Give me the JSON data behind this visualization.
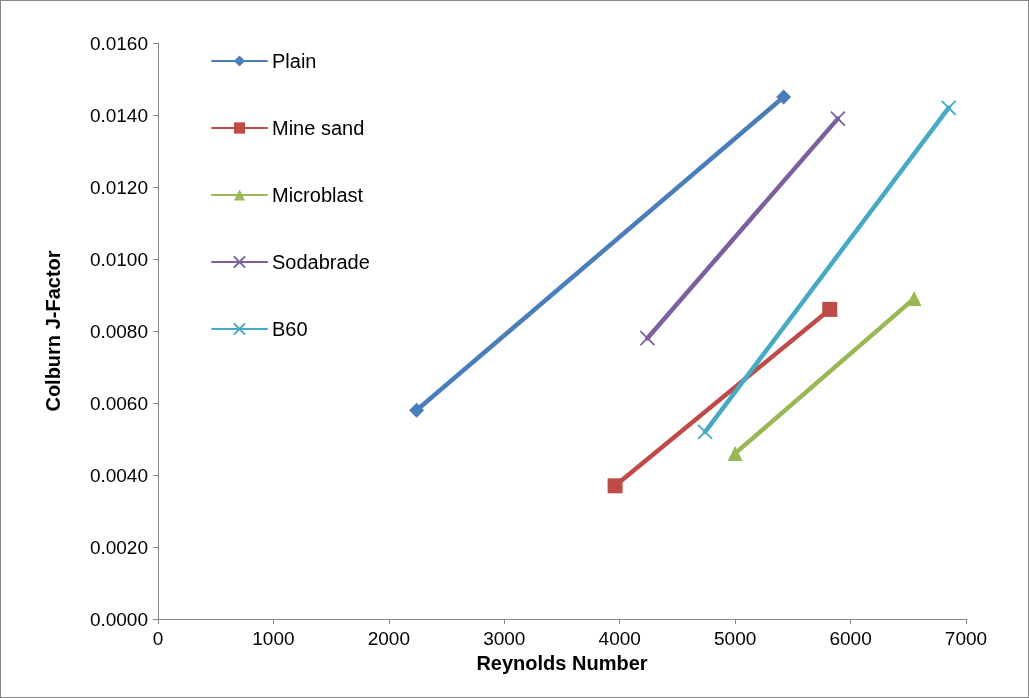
{
  "chart_data": {
    "type": "line",
    "xlabel": "Reynolds Number",
    "ylabel": "Colburn J-Factor",
    "xlim": [
      0,
      7000
    ],
    "xticks": [
      0,
      1000,
      2000,
      3000,
      4000,
      5000,
      6000,
      7000
    ],
    "ylim": [
      0,
      0.016
    ],
    "yticks": [
      {
        "value": 0,
        "label": "0.0000"
      },
      {
        "value": 0.002,
        "label": "0.0020"
      },
      {
        "value": 0.004,
        "label": "0.0040"
      },
      {
        "value": 0.006,
        "label": "0.0060"
      },
      {
        "value": 0.008,
        "label": "0.0080"
      },
      {
        "value": 0.01,
        "label": "0.0100"
      },
      {
        "value": 0.012,
        "label": "0.0120"
      },
      {
        "value": 0.014,
        "label": "0.0140"
      },
      {
        "value": 0.016,
        "label": "0.0160"
      }
    ],
    "legend": "top left",
    "series": [
      {
        "name": "Plain",
        "color": "#4a7ebb",
        "marker": "diamond",
        "x": [
          2240,
          5420
        ],
        "values": [
          0.0058,
          0.0145
        ]
      },
      {
        "name": "Mine sand",
        "color": "#be4b48",
        "marker": "square",
        "x": [
          3960,
          5820
        ],
        "values": [
          0.0037,
          0.0086
        ]
      },
      {
        "name": "Microblast",
        "color": "#98b954",
        "marker": "triangle",
        "x": [
          5000,
          6550
        ],
        "values": [
          0.0046,
          0.0089
        ]
      },
      {
        "name": "Sodabrade",
        "color": "#7d5fa0",
        "marker": "cross",
        "x": [
          4240,
          5890
        ],
        "values": [
          0.0078,
          0.0139
        ]
      },
      {
        "name": "B60",
        "color": "#46aac5",
        "marker": "cross",
        "x": [
          4740,
          6850
        ],
        "values": [
          0.0052,
          0.0142
        ]
      }
    ]
  }
}
